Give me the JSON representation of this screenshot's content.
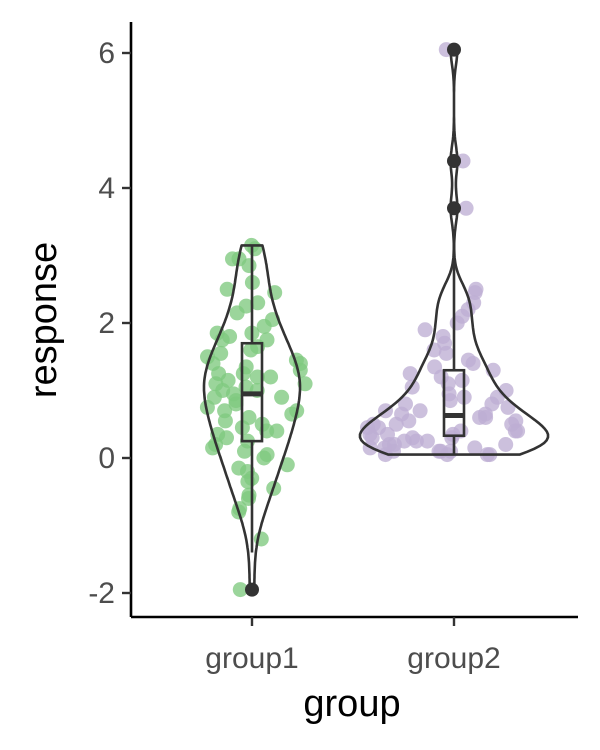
{
  "chart_data": {
    "type": "violin",
    "xlabel": "group",
    "ylabel": "response",
    "ylim": [
      -2.3,
      6.4
    ],
    "yticks": [
      -2,
      0,
      2,
      4,
      6
    ],
    "grid": false,
    "legend": "none",
    "categories": [
      "group1",
      "group2"
    ],
    "series": [
      {
        "category": "group1",
        "color": "#7fc97f",
        "box": {
          "q1": 0.25,
          "median": 0.95,
          "q3": 1.7,
          "whisker_low": -1.4,
          "whisker_high": 3.15
        },
        "outliers": [
          -1.95
        ],
        "points": [
          3.15,
          3.1,
          2.95,
          2.95,
          2.85,
          2.6,
          2.5,
          2.45,
          2.3,
          2.25,
          2.15,
          2.05,
          1.95,
          1.85,
          1.85,
          1.8,
          1.75,
          1.75,
          1.65,
          1.6,
          1.55,
          1.5,
          1.45,
          1.4,
          1.4,
          1.35,
          1.3,
          1.25,
          1.25,
          1.2,
          1.2,
          1.15,
          1.1,
          1.1,
          1.05,
          1.0,
          1.0,
          0.95,
          0.9,
          0.9,
          0.85,
          0.8,
          0.75,
          0.7,
          0.7,
          0.65,
          0.6,
          0.55,
          0.5,
          0.45,
          0.4,
          0.4,
          0.35,
          0.3,
          0.25,
          0.2,
          0.15,
          0.1,
          0.05,
          0.0,
          -0.1,
          -0.15,
          -0.2,
          -0.3,
          -0.35,
          -0.45,
          -0.55,
          -0.6,
          -0.75,
          -0.8,
          -1.2,
          -1.95
        ]
      },
      {
        "category": "group2",
        "color": "#beaed4",
        "box": {
          "q1": 0.33,
          "median": 0.63,
          "q3": 1.3,
          "whisker_low": 0.05,
          "whisker_high": 2.9
        },
        "outliers": [
          3.7,
          4.4,
          6.05
        ],
        "points": [
          6.05,
          4.4,
          3.7,
          2.5,
          2.45,
          2.3,
          2.2,
          2.1,
          2.0,
          1.9,
          1.8,
          1.7,
          1.6,
          1.55,
          1.45,
          1.4,
          1.35,
          1.3,
          1.25,
          1.2,
          1.15,
          1.1,
          1.05,
          1.0,
          0.95,
          0.9,
          0.9,
          0.85,
          0.8,
          0.8,
          0.75,
          0.7,
          0.7,
          0.65,
          0.65,
          0.6,
          0.6,
          0.55,
          0.55,
          0.5,
          0.5,
          0.5,
          0.45,
          0.45,
          0.4,
          0.4,
          0.4,
          0.35,
          0.35,
          0.35,
          0.3,
          0.3,
          0.3,
          0.25,
          0.25,
          0.25,
          0.2,
          0.2,
          0.2,
          0.15,
          0.15,
          0.15,
          0.1,
          0.1,
          0.1,
          0.1,
          0.05,
          0.05,
          0.05,
          0.05
        ]
      }
    ]
  }
}
